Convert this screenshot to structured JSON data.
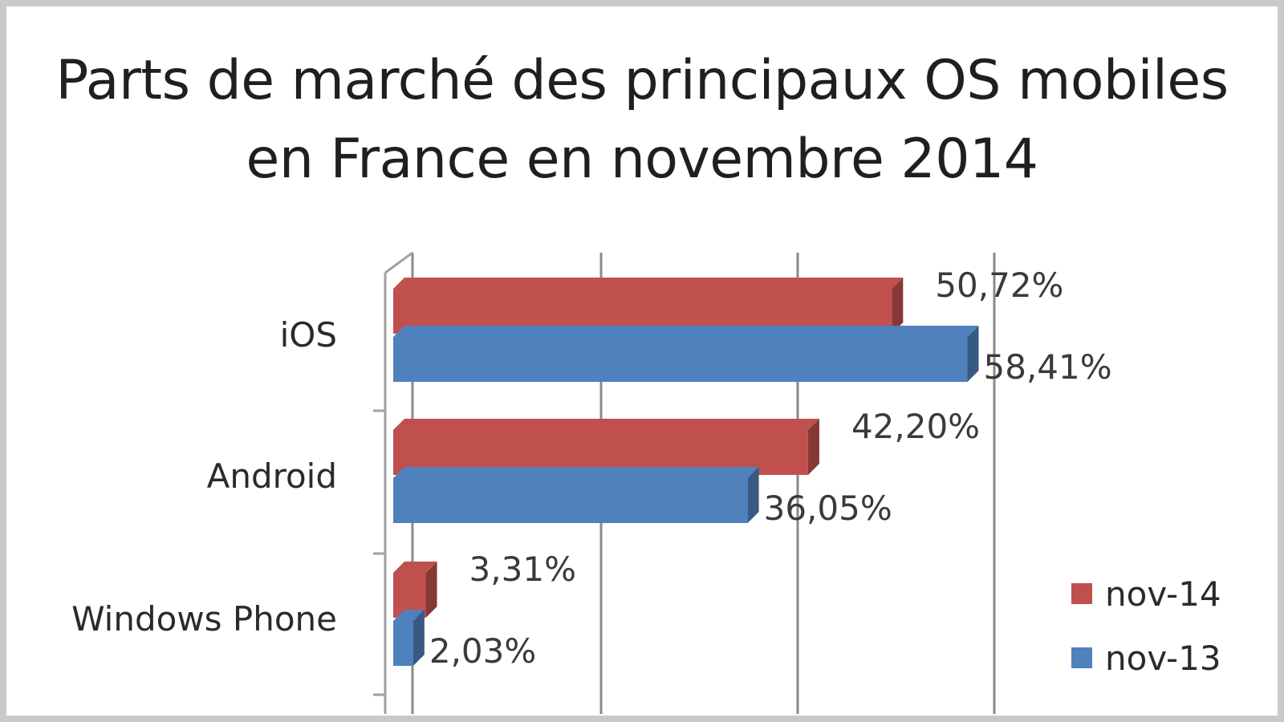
{
  "chart_data": {
    "type": "bar",
    "orientation": "horizontal",
    "three_d": true,
    "title": "Parts de marché des principaux OS mobiles en France en novembre 2014",
    "title_lines": [
      "Parts de marché des principaux OS mobiles",
      "en France en novembre 2014"
    ],
    "categories": [
      "iOS",
      "Android",
      "Windows Phone"
    ],
    "series": [
      {
        "name": "nov-14",
        "color": "#c0504d",
        "values": [
          50.72,
          42.2,
          3.31
        ],
        "labels": [
          "50,72%",
          "42,20%",
          "3,31%"
        ]
      },
      {
        "name": "nov-13",
        "color": "#4f81bd",
        "values": [
          58.41,
          36.05,
          2.03
        ],
        "labels": [
          "58,41%",
          "36,05%",
          "2,03%"
        ]
      }
    ],
    "xlim": [
      0,
      70
    ],
    "gridlines": true,
    "legend_position": "bottom-right",
    "xlabel": "",
    "ylabel": ""
  }
}
